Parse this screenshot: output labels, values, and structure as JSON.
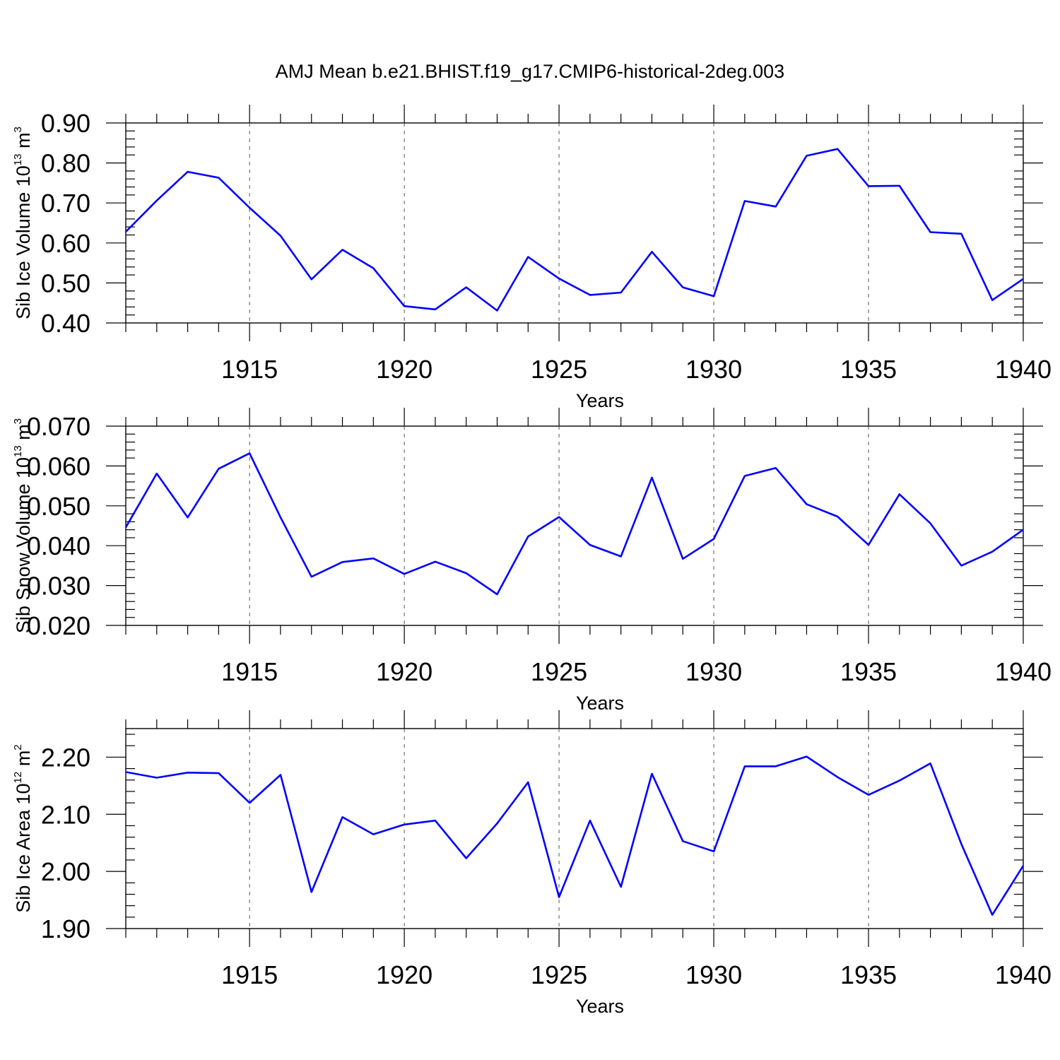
{
  "chart_data": {
    "title": "AMJ Mean b.e21.BHIST.f19_g17.CMIP6-historical-2deg.003",
    "panels": [
      {
        "type": "line",
        "ylabel_main": "Sib Ice Volume 10",
        "ylabel_exp": "13",
        "ylabel_unit": " m",
        "ylabel_unit_exp": "3",
        "xlabel": "Years",
        "xlim": [
          1911,
          1940
        ],
        "ylim": [
          0.4,
          0.9
        ],
        "yticks": [
          "0.40",
          "0.50",
          "0.60",
          "0.70",
          "0.80",
          "0.90"
        ],
        "xticks": [
          "1915",
          "1920",
          "1925",
          "1930",
          "1935",
          "1940"
        ],
        "line_color": "#0000ff",
        "x": [
          1911,
          1912,
          1913,
          1914,
          1915,
          1916,
          1917,
          1918,
          1919,
          1920,
          1921,
          1922,
          1923,
          1924,
          1925,
          1926,
          1927,
          1928,
          1929,
          1930,
          1931,
          1932,
          1933,
          1934,
          1935,
          1936,
          1937,
          1938,
          1939,
          1940
        ],
        "values": [
          0.628,
          0.706,
          0.778,
          0.763,
          0.688,
          0.618,
          0.509,
          0.583,
          0.537,
          0.442,
          0.434,
          0.489,
          0.431,
          0.565,
          0.511,
          0.47,
          0.476,
          0.578,
          0.489,
          0.467,
          0.705,
          0.691,
          0.818,
          0.835,
          0.742,
          0.743,
          0.627,
          0.623,
          0.457,
          0.51
        ]
      },
      {
        "type": "line",
        "ylabel_main": "Sib Snow Volume 10",
        "ylabel_exp": "13",
        "ylabel_unit": " m",
        "ylabel_unit_exp": "3",
        "xlabel": "Years",
        "xlim": [
          1911,
          1940
        ],
        "ylim": [
          0.02,
          0.07
        ],
        "yticks": [
          "0.020",
          "0.030",
          "0.040",
          "0.050",
          "0.060",
          "0.070"
        ],
        "xticks": [
          "1915",
          "1920",
          "1925",
          "1930",
          "1935",
          "1940"
        ],
        "line_color": "#0000ff",
        "x": [
          1911,
          1912,
          1913,
          1914,
          1915,
          1916,
          1917,
          1918,
          1919,
          1920,
          1921,
          1922,
          1923,
          1924,
          1925,
          1926,
          1927,
          1928,
          1929,
          1930,
          1931,
          1932,
          1933,
          1934,
          1935,
          1936,
          1937,
          1938,
          1939,
          1940
        ],
        "values": [
          0.0446,
          0.0581,
          0.0471,
          0.0593,
          0.0632,
          0.0471,
          0.0322,
          0.0359,
          0.0368,
          0.0329,
          0.036,
          0.0331,
          0.0278,
          0.0423,
          0.0472,
          0.0402,
          0.0373,
          0.0571,
          0.0367,
          0.0417,
          0.0575,
          0.0595,
          0.0504,
          0.0473,
          0.0402,
          0.0529,
          0.0456,
          0.035,
          0.0385,
          0.044
        ]
      },
      {
        "type": "line",
        "ylabel_main": "Sib Ice Area 10",
        "ylabel_exp": "12",
        "ylabel_unit": " m",
        "ylabel_unit_exp": "2",
        "xlabel": "Years",
        "xlim": [
          1911,
          1940
        ],
        "ylim": [
          1.9,
          2.25
        ],
        "yticks": [
          "1.90",
          "2.00",
          "2.10",
          "2.20"
        ],
        "xticks": [
          "1915",
          "1920",
          "1925",
          "1930",
          "1935",
          "1940"
        ],
        "line_color": "#0000ff",
        "x": [
          1911,
          1912,
          1913,
          1914,
          1915,
          1916,
          1917,
          1918,
          1919,
          1920,
          1921,
          1922,
          1923,
          1924,
          1925,
          1926,
          1927,
          1928,
          1929,
          1930,
          1931,
          1932,
          1933,
          1934,
          1935,
          1936,
          1937,
          1938,
          1939,
          1940
        ],
        "values": [
          2.174,
          2.164,
          2.173,
          2.172,
          2.12,
          2.169,
          1.964,
          2.095,
          2.065,
          2.082,
          2.089,
          2.023,
          2.084,
          2.156,
          1.955,
          2.089,
          1.973,
          2.171,
          2.053,
          2.035,
          2.184,
          2.184,
          2.201,
          2.165,
          2.134,
          2.159,
          2.189,
          2.048,
          1.924,
          2.01
        ]
      }
    ]
  }
}
